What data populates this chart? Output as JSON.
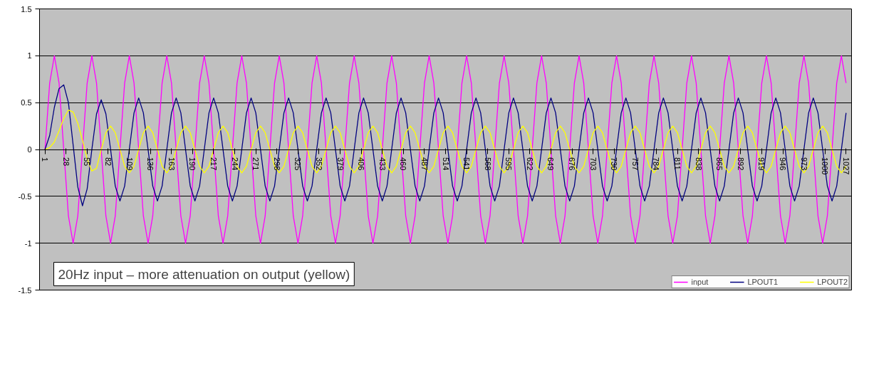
{
  "chart_data": {
    "type": "line",
    "annotations": [
      "20Hz input – more attenuation on output (yellow)"
    ],
    "x": [
      1,
      7,
      13,
      19,
      25,
      31,
      37,
      43,
      49,
      55,
      61,
      67,
      73,
      79,
      85,
      91,
      97,
      103,
      109,
      115,
      121,
      127,
      133,
      139,
      145,
      151,
      157,
      163,
      169,
      175,
      181,
      187,
      193,
      199,
      205,
      211,
      217,
      223,
      229,
      235,
      241,
      247,
      253,
      259,
      265,
      271,
      277,
      283,
      289,
      295,
      301,
      307,
      313,
      319,
      325,
      331,
      337,
      343,
      349,
      355,
      361,
      367,
      373,
      379,
      385,
      391,
      397,
      403,
      409,
      415,
      421,
      427,
      433,
      439,
      445,
      451,
      457,
      463,
      469,
      475,
      481,
      487,
      493,
      499,
      505,
      511,
      517,
      523,
      529,
      535,
      541,
      547,
      553,
      559,
      565,
      571,
      577,
      583,
      589,
      595,
      601,
      607,
      613,
      619,
      625,
      631,
      637,
      643,
      649,
      655,
      661,
      667,
      673,
      679,
      685,
      691,
      697,
      703,
      709,
      715,
      721,
      727,
      733,
      739,
      745,
      751,
      757,
      763,
      769,
      775,
      781,
      787,
      793,
      799,
      805,
      811,
      817,
      823,
      829,
      835,
      841,
      847,
      853,
      859,
      865,
      871,
      877,
      883,
      889,
      895,
      901,
      907,
      913,
      919,
      925,
      931,
      937,
      943,
      949,
      955,
      961,
      967,
      973,
      979,
      985,
      991,
      997,
      1003,
      1009,
      1015,
      1021,
      1027
    ],
    "series": [
      {
        "name": "input",
        "color": "#ff00ff",
        "values": [
          0,
          0.71,
          1,
          0.71,
          0,
          -0.71,
          -1,
          -0.71,
          0,
          0.71,
          1,
          0.71,
          0,
          -0.71,
          -1,
          -0.71,
          0,
          0.71,
          1,
          0.71,
          0,
          -0.71,
          -1,
          -0.71,
          0,
          0.71,
          1,
          0.71,
          0,
          -0.71,
          -1,
          -0.71,
          0,
          0.71,
          1,
          0.71,
          0,
          -0.71,
          -1,
          -0.71,
          0,
          0.71,
          1,
          0.71,
          0,
          -0.71,
          -1,
          -0.71,
          0,
          0.71,
          1,
          0.71,
          0,
          -0.71,
          -1,
          -0.71,
          0,
          0.71,
          1,
          0.71,
          0,
          -0.71,
          -1,
          -0.71,
          0,
          0.71,
          1,
          0.71,
          0,
          -0.71,
          -1,
          -0.71,
          0,
          0.71,
          1,
          0.71,
          0,
          -0.71,
          -1,
          -0.71,
          0,
          0.71,
          1,
          0.71,
          0,
          -0.71,
          -1,
          -0.71,
          0,
          0.71,
          1,
          0.71,
          0,
          -0.71,
          -1,
          -0.71,
          0,
          0.71,
          1,
          0.71,
          0,
          -0.71,
          -1,
          -0.71,
          0,
          0.71,
          1,
          0.71,
          0,
          -0.71,
          -1,
          -0.71,
          0,
          0.71,
          1,
          0.71,
          0,
          -0.71,
          -1,
          -0.71,
          0,
          0.71,
          1,
          0.71,
          0,
          -0.71,
          -1,
          -0.71,
          0,
          0.71,
          1,
          0.71,
          0,
          -0.71,
          -1,
          -0.71,
          0,
          0.71,
          1,
          0.71,
          0,
          -0.71,
          -1,
          -0.71,
          0,
          0.71,
          1,
          0.71,
          0,
          -0.71,
          -1,
          -0.71,
          0,
          0.71,
          1,
          0.71,
          0,
          -0.71,
          -1,
          -0.71,
          0,
          0.71,
          1,
          0.71,
          0,
          -0.71,
          -1,
          -0.71,
          0,
          0.71,
          1,
          0.71
        ]
      },
      {
        "name": "LPOUT1",
        "color": "#000080",
        "values": [
          0,
          0.15,
          0.45,
          0.65,
          0.69,
          0.5,
          0.05,
          -0.4,
          -0.6,
          -0.42,
          0,
          0.38,
          0.53,
          0.38,
          0,
          -0.39,
          -0.55,
          -0.39,
          0,
          0.39,
          0.55,
          0.39,
          0,
          -0.39,
          -0.55,
          -0.39,
          0,
          0.39,
          0.55,
          0.39,
          0,
          -0.39,
          -0.55,
          -0.39,
          0,
          0.39,
          0.55,
          0.39,
          0,
          -0.39,
          -0.55,
          -0.39,
          0,
          0.39,
          0.55,
          0.39,
          0,
          -0.39,
          -0.55,
          -0.39,
          0,
          0.39,
          0.55,
          0.39,
          0,
          -0.39,
          -0.55,
          -0.39,
          0,
          0.39,
          0.55,
          0.39,
          0,
          -0.39,
          -0.55,
          -0.39,
          0,
          0.39,
          0.55,
          0.39,
          0,
          -0.39,
          -0.55,
          -0.39,
          0,
          0.39,
          0.55,
          0.39,
          0,
          -0.39,
          -0.55,
          -0.39,
          0,
          0.39,
          0.55,
          0.39,
          0,
          -0.39,
          -0.55,
          -0.39,
          0,
          0.39,
          0.55,
          0.39,
          0,
          -0.39,
          -0.55,
          -0.39,
          0,
          0.39,
          0.55,
          0.39,
          0,
          -0.39,
          -0.55,
          -0.39,
          0,
          0.39,
          0.55,
          0.39,
          0,
          -0.39,
          -0.55,
          -0.39,
          0,
          0.39,
          0.55,
          0.39,
          0,
          -0.39,
          -0.55,
          -0.39,
          0,
          0.39,
          0.55,
          0.39,
          0,
          -0.39,
          -0.55,
          -0.39,
          0,
          0.39,
          0.55,
          0.39,
          0,
          -0.39,
          -0.55,
          -0.39,
          0,
          0.39,
          0.55,
          0.39,
          0,
          -0.39,
          -0.55,
          -0.39,
          0,
          0.39,
          0.55,
          0.39,
          0,
          -0.39,
          -0.55,
          -0.39,
          0,
          0.39,
          0.55,
          0.39,
          0,
          -0.39,
          -0.55,
          -0.39,
          0,
          0.39,
          0.55,
          0.39,
          0,
          -0.39,
          -0.55,
          -0.39,
          0,
          0.39
        ]
      },
      {
        "name": "LPOUT2",
        "color": "#ffff00",
        "values": [
          0,
          0.02,
          0.08,
          0.2,
          0.33,
          0.42,
          0.4,
          0.28,
          0.1,
          -0.1,
          -0.23,
          -0.2,
          0,
          0.18,
          0.25,
          0.18,
          0,
          -0.18,
          -0.25,
          -0.18,
          0,
          0.18,
          0.25,
          0.18,
          0,
          -0.18,
          -0.25,
          -0.18,
          0,
          0.18,
          0.25,
          0.18,
          0,
          -0.18,
          -0.25,
          -0.18,
          0,
          0.18,
          0.25,
          0.18,
          0,
          -0.18,
          -0.25,
          -0.18,
          0,
          0.18,
          0.25,
          0.18,
          0,
          -0.18,
          -0.25,
          -0.18,
          0,
          0.18,
          0.25,
          0.18,
          0,
          -0.18,
          -0.25,
          -0.18,
          0,
          0.18,
          0.25,
          0.18,
          0,
          -0.18,
          -0.25,
          -0.18,
          0,
          0.18,
          0.25,
          0.18,
          0,
          -0.18,
          -0.25,
          -0.18,
          0,
          0.18,
          0.25,
          0.18,
          0,
          -0.18,
          -0.25,
          -0.18,
          0,
          0.18,
          0.25,
          0.18,
          0,
          -0.18,
          -0.25,
          -0.18,
          0,
          0.18,
          0.25,
          0.18,
          0,
          -0.18,
          -0.25,
          -0.18,
          0,
          0.18,
          0.25,
          0.18,
          0,
          -0.18,
          -0.25,
          -0.18,
          0,
          0.18,
          0.25,
          0.18,
          0,
          -0.18,
          -0.25,
          -0.18,
          0,
          0.18,
          0.25,
          0.18,
          0,
          -0.18,
          -0.25,
          -0.18,
          0,
          0.18,
          0.25,
          0.18,
          0,
          -0.18,
          -0.25,
          -0.18,
          0,
          0.18,
          0.25,
          0.18,
          0,
          -0.18,
          -0.25,
          -0.18,
          0,
          0.18,
          0.25,
          0.18,
          0,
          -0.18,
          -0.25,
          -0.18,
          0,
          0.18,
          0.25,
          0.18,
          0,
          -0.18,
          -0.25,
          -0.18,
          0,
          0.18,
          0.25,
          0.18,
          0,
          -0.18,
          -0.25,
          -0.18,
          0,
          0.18,
          0.25,
          0.18,
          0,
          -0.18,
          -0.25,
          -0.18
        ]
      }
    ],
    "xlim": [
      -6,
      1034
    ],
    "xticks": [
      1,
      28,
      55,
      82,
      109,
      136,
      163,
      190,
      217,
      244,
      271,
      298,
      325,
      352,
      379,
      406,
      433,
      460,
      487,
      514,
      541,
      568,
      595,
      622,
      649,
      676,
      703,
      730,
      757,
      784,
      811,
      838,
      865,
      892,
      919,
      946,
      973,
      1000,
      1027
    ],
    "ylim": [
      -1.5,
      1.5
    ],
    "yticks": [
      -1.5,
      -1,
      -0.5,
      0,
      0.5,
      1,
      1.5
    ],
    "grid": "y",
    "legend": "bottom right"
  }
}
